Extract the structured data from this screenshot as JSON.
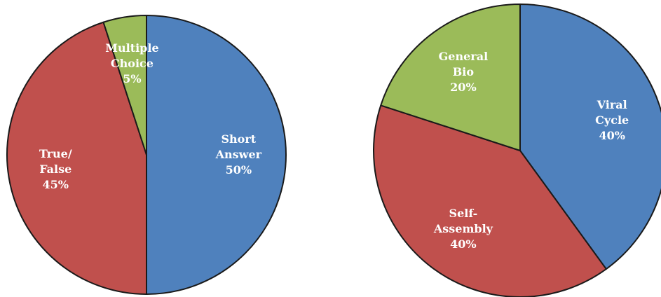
{
  "chart_data": [
    {
      "type": "pie",
      "categories": [
        "Short\nAnswer",
        "True/\nFalse",
        "Multiple\nChoice"
      ],
      "values": [
        50,
        45,
        5
      ],
      "value_labels": [
        "50%",
        "45%",
        "5%"
      ],
      "colors": [
        "#4f81bd",
        "#c0504d",
        "#9bbb59"
      ]
    },
    {
      "type": "pie",
      "categories": [
        "Viral\nCycle",
        "Self-\nAssembly",
        "General\nBio"
      ],
      "values": [
        40,
        40,
        20
      ],
      "value_labels": [
        "40%",
        "40%",
        "20%"
      ],
      "colors": [
        "#4f81bd",
        "#c0504d",
        "#9bbb59"
      ]
    }
  ]
}
